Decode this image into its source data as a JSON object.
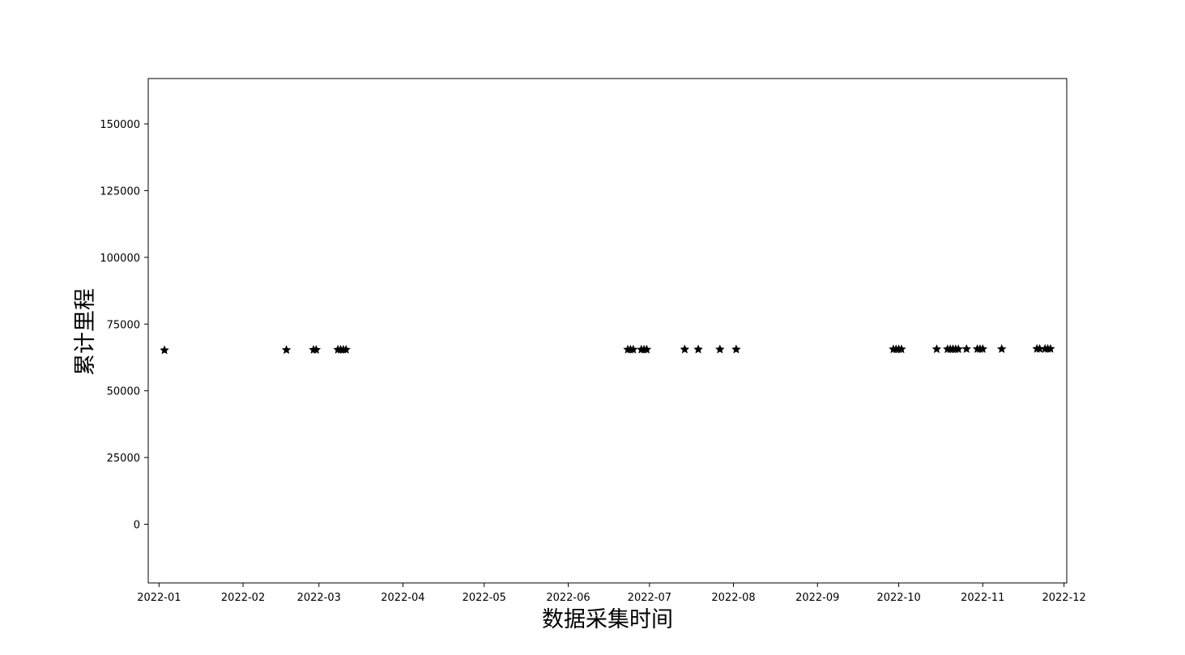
{
  "chart_data": {
    "type": "scatter",
    "title": "",
    "xlabel": "数据采集时间",
    "ylabel": "累计里程",
    "x_axis_type": "date",
    "xlim": [
      "2021-12-28",
      "2022-12-02"
    ],
    "ylim": [
      -22000,
      167000
    ],
    "grid": false,
    "legend": "none",
    "marker": "star",
    "marker_color": "#000000",
    "x_ticks": [
      "2022-01",
      "2022-02",
      "2022-03",
      "2022-04",
      "2022-05",
      "2022-06",
      "2022-07",
      "2022-08",
      "2022-09",
      "2022-10",
      "2022-11",
      "2022-12"
    ],
    "y_ticks": [
      0,
      25000,
      50000,
      75000,
      100000,
      125000,
      150000
    ],
    "y_tick_labels": [
      "0",
      "25000",
      "50000",
      "75000",
      "100000",
      "125000",
      "150000"
    ],
    "points": [
      {
        "x": "2022-01-03",
        "y": 65200
      },
      {
        "x": "2022-02-17",
        "y": 65300
      },
      {
        "x": "2022-02-27",
        "y": 65350
      },
      {
        "x": "2022-02-28",
        "y": 65350
      },
      {
        "x": "2022-03-08",
        "y": 65400
      },
      {
        "x": "2022-03-09",
        "y": 65400
      },
      {
        "x": "2022-03-10",
        "y": 65400
      },
      {
        "x": "2022-03-11",
        "y": 65400
      },
      {
        "x": "2022-06-23",
        "y": 65450
      },
      {
        "x": "2022-06-24",
        "y": 65450
      },
      {
        "x": "2022-06-25",
        "y": 65450
      },
      {
        "x": "2022-06-28",
        "y": 65450
      },
      {
        "x": "2022-06-29",
        "y": 65450
      },
      {
        "x": "2022-06-30",
        "y": 65450
      },
      {
        "x": "2022-07-14",
        "y": 65500
      },
      {
        "x": "2022-07-19",
        "y": 65500
      },
      {
        "x": "2022-07-27",
        "y": 65500
      },
      {
        "x": "2022-08-02",
        "y": 65500
      },
      {
        "x": "2022-09-29",
        "y": 65550
      },
      {
        "x": "2022-09-30",
        "y": 65550
      },
      {
        "x": "2022-10-01",
        "y": 65550
      },
      {
        "x": "2022-10-02",
        "y": 65550
      },
      {
        "x": "2022-10-15",
        "y": 65600
      },
      {
        "x": "2022-10-19",
        "y": 65600
      },
      {
        "x": "2022-10-20",
        "y": 65600
      },
      {
        "x": "2022-10-21",
        "y": 65600
      },
      {
        "x": "2022-10-22",
        "y": 65600
      },
      {
        "x": "2022-10-23",
        "y": 65600
      },
      {
        "x": "2022-10-26",
        "y": 65650
      },
      {
        "x": "2022-10-30",
        "y": 65650
      },
      {
        "x": "2022-10-31",
        "y": 65650
      },
      {
        "x": "2022-11-01",
        "y": 65650
      },
      {
        "x": "2022-11-08",
        "y": 65650
      },
      {
        "x": "2022-11-21",
        "y": 65700
      },
      {
        "x": "2022-11-22",
        "y": 65700
      },
      {
        "x": "2022-11-24",
        "y": 65700
      },
      {
        "x": "2022-11-25",
        "y": 65700
      },
      {
        "x": "2022-11-26",
        "y": 65700
      }
    ]
  }
}
